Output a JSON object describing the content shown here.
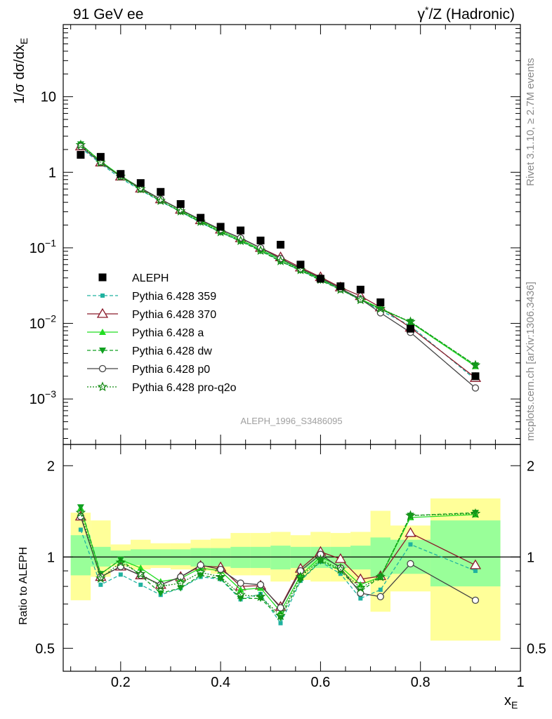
{
  "header": {
    "left": "91 GeV ee",
    "right_prefix": "γ",
    "right_sup": "*",
    "right_suffix": "/Z (Hadronic)"
  },
  "side_labels": {
    "rivet": "Rivet 3.1.10, ≥ 2.7M events",
    "mcplots": "mcplots.cern.ch [arXiv:1306.3436]"
  },
  "watermark": "ALEPH_1996_S3486095",
  "axes": {
    "main_ylabel_prefix": "1/σ dσ/dx",
    "main_ylabel_sub": "E",
    "ratio_ylabel": "Ratio to ALEPH",
    "xlabel_prefix": "x",
    "xlabel_sub": "E",
    "main_yticks": [
      {
        "v": 0.001,
        "base": "10",
        "exp": "−3"
      },
      {
        "v": 0.01,
        "base": "10",
        "exp": "−2"
      },
      {
        "v": 0.1,
        "base": "10",
        "exp": "−1"
      },
      {
        "v": 1,
        "base": "1",
        "exp": ""
      },
      {
        "v": 10,
        "base": "10",
        "exp": ""
      }
    ],
    "ratio_yticks": [
      "0.5",
      "1",
      "2"
    ],
    "xticks": [
      "0.2",
      "0.4",
      "0.6",
      "0.8",
      "1"
    ]
  },
  "chart_data": {
    "type": "scatter",
    "xscale": "linear",
    "yscale": "log",
    "xlim": [
      0.085,
      1.0
    ],
    "ylim": [
      0.00025,
      90
    ],
    "ratio_ylim": [
      0.42,
      2.35
    ],
    "ratio_yscale": "log",
    "legend_position": "left-bottom",
    "x": [
      0.12,
      0.16,
      0.2,
      0.24,
      0.28,
      0.32,
      0.36,
      0.4,
      0.44,
      0.48,
      0.52,
      0.56,
      0.6,
      0.64,
      0.68,
      0.72,
      0.78,
      0.91
    ],
    "data": {
      "name": "ALEPH",
      "color": "#000000",
      "values": [
        1.7,
        1.6,
        0.95,
        0.72,
        0.55,
        0.38,
        0.25,
        0.19,
        0.17,
        0.125,
        0.11,
        0.06,
        0.039,
        0.031,
        0.028,
        0.019,
        0.0085,
        0.002
      ]
    },
    "bands": [
      {
        "x0": 0.1,
        "x1": 0.14,
        "inner": [
          0.87,
          1.18
        ],
        "outer": [
          0.72,
          1.4
        ]
      },
      {
        "x0": 0.14,
        "x1": 0.18,
        "inner": [
          0.93,
          1.08
        ],
        "outer": [
          0.86,
          1.32
        ]
      },
      {
        "x0": 0.18,
        "x1": 0.22,
        "inner": [
          0.95,
          1.05
        ],
        "outer": [
          0.93,
          1.1
        ]
      },
      {
        "x0": 0.22,
        "x1": 0.26,
        "inner": [
          0.94,
          1.06
        ],
        "outer": [
          0.91,
          1.14
        ]
      },
      {
        "x0": 0.26,
        "x1": 0.3,
        "inner": [
          0.94,
          1.06
        ],
        "outer": [
          0.92,
          1.11
        ]
      },
      {
        "x0": 0.3,
        "x1": 0.34,
        "inner": [
          0.94,
          1.06
        ],
        "outer": [
          0.91,
          1.11
        ]
      },
      {
        "x0": 0.34,
        "x1": 0.38,
        "inner": [
          0.93,
          1.07
        ],
        "outer": [
          0.9,
          1.14
        ]
      },
      {
        "x0": 0.38,
        "x1": 0.42,
        "inner": [
          0.93,
          1.07
        ],
        "outer": [
          0.88,
          1.15
        ]
      },
      {
        "x0": 0.42,
        "x1": 0.46,
        "inner": [
          0.92,
          1.08
        ],
        "outer": [
          0.87,
          1.2
        ]
      },
      {
        "x0": 0.46,
        "x1": 0.5,
        "inner": [
          0.92,
          1.08
        ],
        "outer": [
          0.87,
          1.2
        ]
      },
      {
        "x0": 0.5,
        "x1": 0.54,
        "inner": [
          0.91,
          1.09
        ],
        "outer": [
          0.83,
          1.21
        ]
      },
      {
        "x0": 0.54,
        "x1": 0.58,
        "inner": [
          0.92,
          1.08
        ],
        "outer": [
          0.84,
          1.18
        ]
      },
      {
        "x0": 0.58,
        "x1": 0.62,
        "inner": [
          0.92,
          1.08
        ],
        "outer": [
          0.83,
          1.21
        ]
      },
      {
        "x0": 0.62,
        "x1": 0.66,
        "inner": [
          0.92,
          1.08
        ],
        "outer": [
          0.83,
          1.2
        ]
      },
      {
        "x0": 0.66,
        "x1": 0.7,
        "inner": [
          0.91,
          1.09
        ],
        "outer": [
          0.82,
          1.21
        ]
      },
      {
        "x0": 0.7,
        "x1": 0.74,
        "inner": [
          0.86,
          1.16
        ],
        "outer": [
          0.66,
          1.42
        ]
      },
      {
        "x0": 0.74,
        "x1": 0.82,
        "inner": [
          0.88,
          1.14
        ],
        "outer": [
          0.77,
          1.27
        ]
      },
      {
        "x0": 0.82,
        "x1": 0.96,
        "inner": [
          0.8,
          1.32
        ],
        "outer": [
          0.53,
          1.56
        ]
      }
    ],
    "series": [
      {
        "name": "Pythia 6.428 359",
        "color": "#20b2a0",
        "dash": "5,3",
        "marker": "square-small",
        "values": [
          2.1,
          1.3,
          0.83,
          0.58,
          0.41,
          0.3,
          0.215,
          0.16,
          0.123,
          0.094,
          0.067,
          0.05,
          0.038,
          0.028,
          0.0205,
          0.0148,
          0.0093,
          0.0018
        ],
        "ratio": [
          1.23,
          0.81,
          0.875,
          0.81,
          0.75,
          0.79,
          0.86,
          0.845,
          0.725,
          0.755,
          0.605,
          0.835,
          0.965,
          0.88,
          0.73,
          0.78,
          1.1,
          0.9
        ]
      },
      {
        "name": "Pythia 6.428 370",
        "color": "#8b1a2a",
        "dash": "",
        "marker": "triangle-open",
        "values": [
          2.2,
          1.35,
          0.88,
          0.61,
          0.44,
          0.32,
          0.233,
          0.175,
          0.134,
          0.1,
          0.075,
          0.055,
          0.041,
          0.03,
          0.023,
          0.0163,
          0.0088,
          0.0019
        ],
        "ratio": [
          1.36,
          0.86,
          0.93,
          0.87,
          0.81,
          0.86,
          0.935,
          0.925,
          0.8,
          0.805,
          0.685,
          0.915,
          1.04,
          0.985,
          0.845,
          0.865,
          1.2,
          0.94
        ]
      },
      {
        "name": "Pythia 6.428 a",
        "color": "#22dd22",
        "dash": "",
        "marker": "triangle-up",
        "values": [
          2.35,
          1.4,
          0.9,
          0.62,
          0.44,
          0.315,
          0.228,
          0.168,
          0.128,
          0.095,
          0.07,
          0.052,
          0.039,
          0.029,
          0.021,
          0.0158,
          0.0103,
          0.0027
        ],
        "ratio": [
          1.45,
          0.88,
          0.98,
          0.92,
          0.83,
          0.85,
          0.92,
          0.9,
          0.78,
          0.79,
          0.66,
          0.87,
          1.0,
          0.93,
          0.81,
          0.86,
          1.35,
          1.38
        ]
      },
      {
        "name": "Pythia 6.428 dw",
        "color": "#10a020",
        "dash": "5,3",
        "marker": "triangle-down",
        "values": [
          2.35,
          1.4,
          0.87,
          0.59,
          0.42,
          0.3,
          0.218,
          0.16,
          0.122,
          0.091,
          0.066,
          0.05,
          0.037,
          0.028,
          0.0205,
          0.0153,
          0.0105,
          0.0028
        ],
        "ratio": [
          1.46,
          0.88,
          0.98,
          0.87,
          0.76,
          0.79,
          0.87,
          0.85,
          0.73,
          0.73,
          0.63,
          0.84,
          0.97,
          0.9,
          0.77,
          0.86,
          1.37,
          1.4
        ]
      },
      {
        "name": "Pythia 6.428 p0",
        "color": "#444444",
        "dash": "",
        "marker": "circle-open",
        "values": [
          2.2,
          1.35,
          0.88,
          0.62,
          0.44,
          0.32,
          0.235,
          0.174,
          0.135,
          0.1,
          0.072,
          0.053,
          0.04,
          0.029,
          0.021,
          0.0138,
          0.0076,
          0.0014
        ],
        "ratio": [
          1.36,
          0.86,
          0.93,
          0.87,
          0.81,
          0.86,
          0.94,
          0.91,
          0.82,
          0.81,
          0.68,
          0.9,
          1.02,
          0.92,
          0.76,
          0.74,
          0.95,
          0.72
        ]
      },
      {
        "name": "Pythia 6.428 pro-q2o",
        "color": "#138a13",
        "dash": "2,2",
        "marker": "star-open",
        "values": [
          2.3,
          1.35,
          0.88,
          0.6,
          0.42,
          0.305,
          0.222,
          0.162,
          0.124,
          0.092,
          0.067,
          0.051,
          0.038,
          0.028,
          0.0205,
          0.0157,
          0.0105,
          0.0028
        ],
        "ratio": [
          1.4,
          0.85,
          0.96,
          0.88,
          0.8,
          0.82,
          0.89,
          0.86,
          0.75,
          0.74,
          0.64,
          0.86,
          0.98,
          0.91,
          0.79,
          0.86,
          1.37,
          1.39
        ]
      }
    ]
  }
}
